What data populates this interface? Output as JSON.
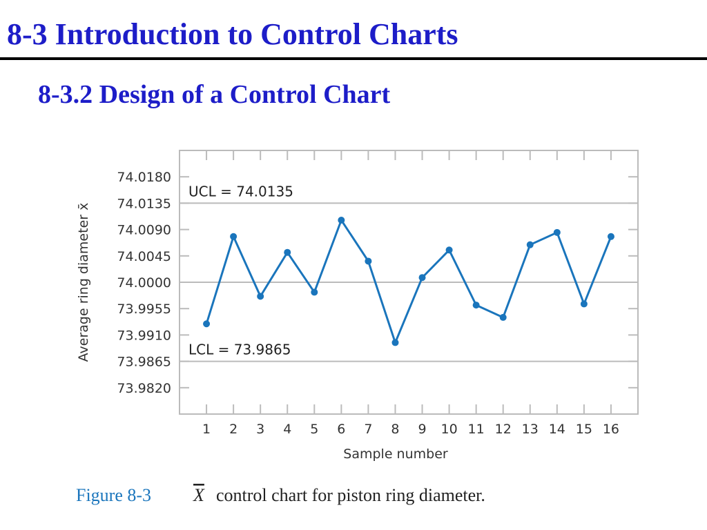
{
  "slide": {
    "title": "8-3 Introduction to Control Charts",
    "subtitle": "8-3.2 Design of a Control Chart"
  },
  "chart_data": {
    "type": "line",
    "x_label": "Sample number",
    "y_label": "Average ring diameter x̄",
    "x": [
      1,
      2,
      3,
      4,
      5,
      6,
      7,
      8,
      9,
      10,
      11,
      12,
      13,
      14,
      15,
      16
    ],
    "series": [
      {
        "color": "#1a75bc",
        "values": [
          73.9929,
          74.0078,
          73.9976,
          74.0051,
          73.9983,
          74.0106,
          74.0036,
          73.9897,
          74.0008,
          74.0055,
          73.9961,
          73.994,
          74.0064,
          74.0085,
          73.9963,
          74.0078
        ]
      }
    ],
    "xlim": [
      0,
      17
    ],
    "xticks": [
      1,
      2,
      3,
      4,
      5,
      6,
      7,
      8,
      9,
      10,
      11,
      12,
      13,
      14,
      15,
      16
    ],
    "ylim": [
      73.9775,
      74.0225
    ],
    "yticks": [
      {
        "value": 73.982,
        "label": "73.9820"
      },
      {
        "value": 73.9865,
        "label": "73.9865"
      },
      {
        "value": 73.991,
        "label": "73.9910"
      },
      {
        "value": 73.9955,
        "label": "73.9955"
      },
      {
        "value": 74.0,
        "label": "74.0000"
      },
      {
        "value": 74.0045,
        "label": "74.0045"
      },
      {
        "value": 74.009,
        "label": "74.0090"
      },
      {
        "value": 74.0135,
        "label": "74.0135"
      },
      {
        "value": 74.018,
        "label": "74.0180"
      }
    ],
    "center_line": 74.0,
    "control_limits": [
      {
        "text": "UCL = 74.0135",
        "value": 74.0135
      },
      {
        "text": "LCL = 73.9865",
        "value": 73.9865
      }
    ]
  },
  "caption": {
    "label": "Figure 8-3",
    "symbol": "X",
    "text": "control chart for piston ring diameter."
  }
}
